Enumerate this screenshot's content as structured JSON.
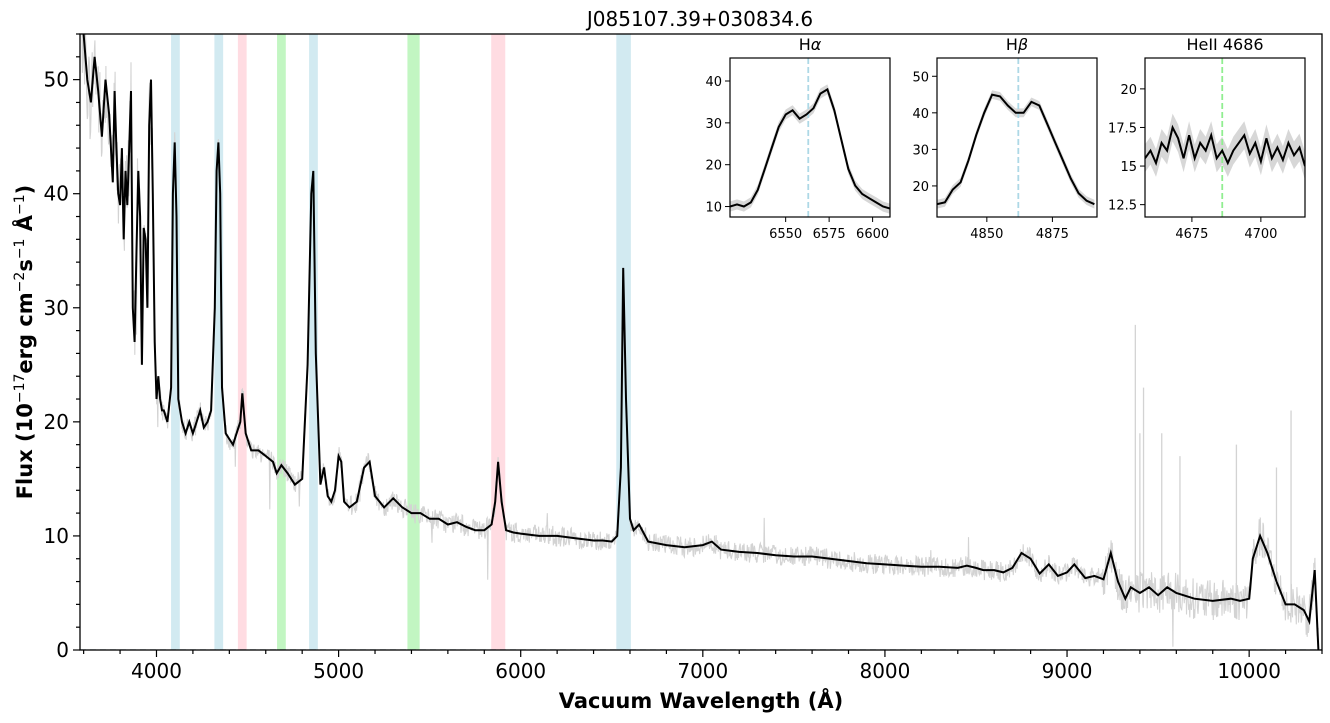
{
  "chart_data": {
    "type": "line",
    "title": "J085107.39+030834.6",
    "xlabel": "Vacuum Wavelength (Å)",
    "ylabel_parts": [
      "Flux (10",
      "−17",
      "erg cm",
      "−2",
      "s",
      "−1",
      " Å",
      "−1",
      ")"
    ],
    "xlim": [
      3580,
      10400
    ],
    "ylim": [
      0,
      54
    ],
    "xticks": [
      4000,
      5000,
      6000,
      7000,
      8000,
      9000,
      10000
    ],
    "yticks": [
      0,
      10,
      20,
      30,
      40,
      50
    ],
    "colors": {
      "raw": "#d3d3d3",
      "smooth": "#000000",
      "balmer": "#add8e6",
      "helium": "#90ee90",
      "heI": "#ffc0cb",
      "zero": "#1f3a5f"
    },
    "bands": [
      {
        "name": "H-delta",
        "x0": 4080,
        "x1": 4128,
        "color": "#add8e6"
      },
      {
        "name": "H-gamma",
        "x0": 4318,
        "x1": 4366,
        "color": "#add8e6"
      },
      {
        "name": "HeI 4471",
        "x0": 4447,
        "x1": 4495,
        "color": "#ffc0cb"
      },
      {
        "name": "HeII 4686",
        "x0": 4662,
        "x1": 4710,
        "color": "#90ee90"
      },
      {
        "name": "H-beta",
        "x0": 4838,
        "x1": 4886,
        "color": "#add8e6"
      },
      {
        "name": "HeII 5411",
        "x0": 5378,
        "x1": 5445,
        "color": "#90ee90"
      },
      {
        "name": "HeI 5876",
        "x0": 5838,
        "x1": 5915,
        "color": "#ffc0cb"
      },
      {
        "name": "H-alpha",
        "x0": 6525,
        "x1": 6605,
        "color": "#add8e6"
      }
    ],
    "series": [
      {
        "name": "smoothed spectrum",
        "color": "#000000",
        "x": [
          3600,
          3620,
          3640,
          3660,
          3680,
          3700,
          3720,
          3740,
          3760,
          3770,
          3780,
          3790,
          3800,
          3810,
          3820,
          3830,
          3840,
          3850,
          3860,
          3870,
          3880,
          3890,
          3900,
          3910,
          3920,
          3930,
          3940,
          3950,
          3960,
          3970,
          3980,
          3990,
          4000,
          4010,
          4020,
          4030,
          4040,
          4060,
          4080,
          4090,
          4100,
          4110,
          4120,
          4140,
          4160,
          4180,
          4200,
          4220,
          4240,
          4260,
          4280,
          4300,
          4320,
          4330,
          4340,
          4350,
          4360,
          4380,
          4400,
          4420,
          4440,
          4460,
          4471,
          4490,
          4520,
          4560,
          4600,
          4640,
          4660,
          4686,
          4720,
          4760,
          4800,
          4830,
          4850,
          4861,
          4875,
          4900,
          4920,
          4940,
          4960,
          4980,
          5000,
          5015,
          5030,
          5060,
          5100,
          5140,
          5170,
          5200,
          5250,
          5300,
          5350,
          5400,
          5450,
          5500,
          5550,
          5600,
          5650,
          5700,
          5750,
          5800,
          5840,
          5860,
          5876,
          5895,
          5920,
          5960,
          6000,
          6100,
          6200,
          6300,
          6400,
          6450,
          6500,
          6530,
          6550,
          6563,
          6578,
          6600,
          6620,
          6650,
          6700,
          6800,
          6900,
          7000,
          7050,
          7100,
          7200,
          7300,
          7400,
          7500,
          7600,
          7700,
          7800,
          7900,
          8000,
          8100,
          8200,
          8300,
          8400,
          8450,
          8500,
          8540,
          8600,
          8650,
          8700,
          8750,
          8800,
          8850,
          8900,
          8950,
          9000,
          9040,
          9100,
          9150,
          9200,
          9240,
          9280,
          9320,
          9350,
          9400,
          9450,
          9500,
          9550,
          9600,
          9700,
          9800,
          9900,
          9950,
          10000,
          10020,
          10060,
          10100,
          10150,
          10200,
          10250,
          10300,
          10330,
          10360,
          10380
        ],
        "y": [
          54,
          50,
          48,
          52,
          49,
          45,
          50,
          47,
          41,
          49,
          44,
          40,
          39,
          44,
          36,
          42,
          39,
          44,
          49,
          30,
          27,
          35,
          42,
          38,
          25,
          37,
          36,
          30,
          46,
          50,
          40,
          27,
          22,
          24,
          22,
          21,
          21,
          20,
          23,
          40,
          44.5,
          38,
          22,
          20,
          19,
          20,
          19,
          20,
          21,
          19.5,
          20,
          21,
          30,
          42,
          44.5,
          40,
          23,
          19,
          18.5,
          18,
          19,
          20,
          22.5,
          19,
          17.5,
          17.5,
          17,
          16.5,
          15.5,
          16.2,
          15.5,
          14.5,
          15,
          25,
          40,
          42,
          26,
          14.5,
          16,
          13.5,
          13,
          14,
          17,
          16.5,
          13,
          12.5,
          13,
          16,
          16.5,
          13.5,
          12.5,
          13.3,
          12.5,
          12,
          12,
          11.5,
          11.5,
          11,
          11.2,
          10.8,
          10.5,
          10.5,
          11,
          13,
          16.5,
          13,
          10.5,
          10.3,
          10.2,
          10,
          10,
          9.8,
          9.6,
          9.6,
          9.5,
          10,
          16,
          33.5,
          22,
          11.5,
          10.5,
          11,
          9.5,
          9.2,
          9,
          9.2,
          9.5,
          8.8,
          8.6,
          8.5,
          8.3,
          8.2,
          8.2,
          8,
          7.8,
          7.6,
          7.5,
          7.4,
          7.3,
          7.3,
          7.2,
          7.4,
          7.2,
          7,
          7,
          6.8,
          7.2,
          8.5,
          8,
          6.7,
          7.5,
          6.5,
          6.8,
          7.5,
          6.3,
          6.5,
          6.2,
          8.5,
          6,
          4.5,
          5.5,
          5,
          5.5,
          4.8,
          5.5,
          5,
          4.5,
          4.3,
          4.5,
          4.3,
          4.5,
          8,
          10,
          8.5,
          6,
          4,
          4,
          3.5,
          2.5,
          7,
          0
        ]
      }
    ],
    "insets": [
      {
        "title_parts": [
          "H",
          "α"
        ],
        "xlim": [
          6518,
          6610
        ],
        "ylim": [
          7.5,
          45.5
        ],
        "xticks": [
          6550,
          6575,
          6600
        ],
        "yticks": [
          10,
          20,
          30,
          40
        ],
        "line_x": 6563,
        "line_color": "#add8e6",
        "x": [
          6518,
          6522,
          6526,
          6530,
          6534,
          6538,
          6542,
          6546,
          6550,
          6554,
          6558,
          6562,
          6566,
          6570,
          6574,
          6578,
          6582,
          6586,
          6590,
          6594,
          6598,
          6602,
          6606,
          6610
        ],
        "y": [
          10,
          10.5,
          10,
          11,
          14,
          19,
          24,
          29,
          32,
          33,
          31,
          32,
          33.5,
          37,
          38,
          33,
          26,
          19,
          15,
          13,
          12,
          11,
          10,
          9.5
        ]
      },
      {
        "title_parts": [
          "H",
          "β"
        ],
        "xlim": [
          4831,
          4892
        ],
        "ylim": [
          11.5,
          55
        ],
        "xticks": [
          4850,
          4875
        ],
        "yticks": [
          20,
          30,
          40,
          50
        ],
        "line_x": 4862,
        "line_color": "#add8e6",
        "x": [
          4831,
          4834,
          4837,
          4840,
          4843,
          4846,
          4849,
          4852,
          4855,
          4858,
          4861,
          4864,
          4867,
          4870,
          4873,
          4876,
          4879,
          4882,
          4885,
          4888,
          4891
        ],
        "y": [
          15,
          15.5,
          19,
          21,
          27,
          34,
          40,
          45,
          44.5,
          42,
          40,
          40,
          43,
          42,
          37,
          32,
          27,
          22,
          18,
          16,
          15
        ]
      },
      {
        "title_parts": [
          "HeII 4686"
        ],
        "xlim": [
          4658,
          4716
        ],
        "ylim": [
          11.7,
          22
        ],
        "xticks": [
          4675,
          4700
        ],
        "yticks": [
          12.5,
          15.0,
          17.5,
          20.0
        ],
        "line_x": 4686,
        "line_color": "#90ee90",
        "x": [
          4658,
          4660,
          4662,
          4664,
          4666,
          4668,
          4670,
          4672,
          4674,
          4676,
          4678,
          4680,
          4682,
          4684,
          4686,
          4688,
          4690,
          4692,
          4694,
          4696,
          4698,
          4700,
          4702,
          4704,
          4706,
          4708,
          4710,
          4712,
          4714,
          4716
        ],
        "y": [
          15.5,
          16,
          15.2,
          16.5,
          16,
          17.5,
          16.8,
          15.5,
          17,
          15.5,
          16.5,
          16,
          17,
          15.5,
          16,
          15.2,
          16,
          16.5,
          17,
          15.8,
          16.5,
          15.3,
          16.8,
          15.5,
          16.2,
          15.4,
          16.5,
          15.7,
          16.2,
          15
        ]
      }
    ]
  }
}
